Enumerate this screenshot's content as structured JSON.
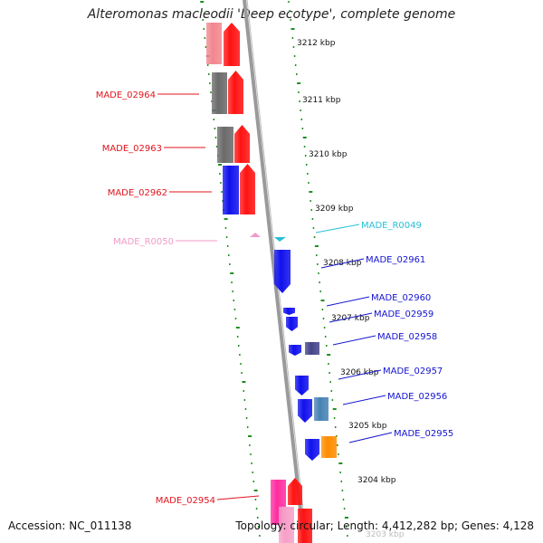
{
  "title": "Alteromonas macleodii 'Deep ecotype', complete genome",
  "footer": {
    "accession": "Accession: NC_011138",
    "topology": "Topology: circular; Length: 4,412,282 bp; Genes: 4,128"
  },
  "colors": {
    "backbone": "#8c8c8c",
    "ticks": "#1f8f1f",
    "left_labels": "#e0141e",
    "rna_left": "#f29bc7",
    "rna_right": "#27c0d8",
    "right_labels": "#1414d0"
  },
  "ruler_labels": [
    "3212 kbp",
    "3211 kbp",
    "3210 kbp",
    "3209 kbp",
    "3208 kbp",
    "3207 kbp",
    "3206 kbp",
    "3205 kbp",
    "3204 kbp",
    "3203 kbp"
  ],
  "left_features": [
    {
      "label": "MADE_02964",
      "color": "#e0141e"
    },
    {
      "label": "MADE_02963",
      "color": "#e0141e"
    },
    {
      "label": "MADE_02962",
      "color": "#e0141e"
    },
    {
      "label": "MADE_R0050",
      "color": "#f29bc7"
    },
    {
      "label": "MADE_02954",
      "color": "#e0141e"
    }
  ],
  "right_features": [
    {
      "label": "MADE_R0049",
      "color": "#27c0d8"
    },
    {
      "label": "MADE_02961",
      "color": "#1414d0"
    },
    {
      "label": "MADE_02960",
      "color": "#1414d0"
    },
    {
      "label": "MADE_02959",
      "color": "#1414d0"
    },
    {
      "label": "MADE_02958",
      "color": "#1414d0"
    },
    {
      "label": "MADE_02957",
      "color": "#1414d0"
    },
    {
      "label": "MADE_02956",
      "color": "#1414d0"
    },
    {
      "label": "MADE_02955",
      "color": "#1414d0"
    }
  ]
}
